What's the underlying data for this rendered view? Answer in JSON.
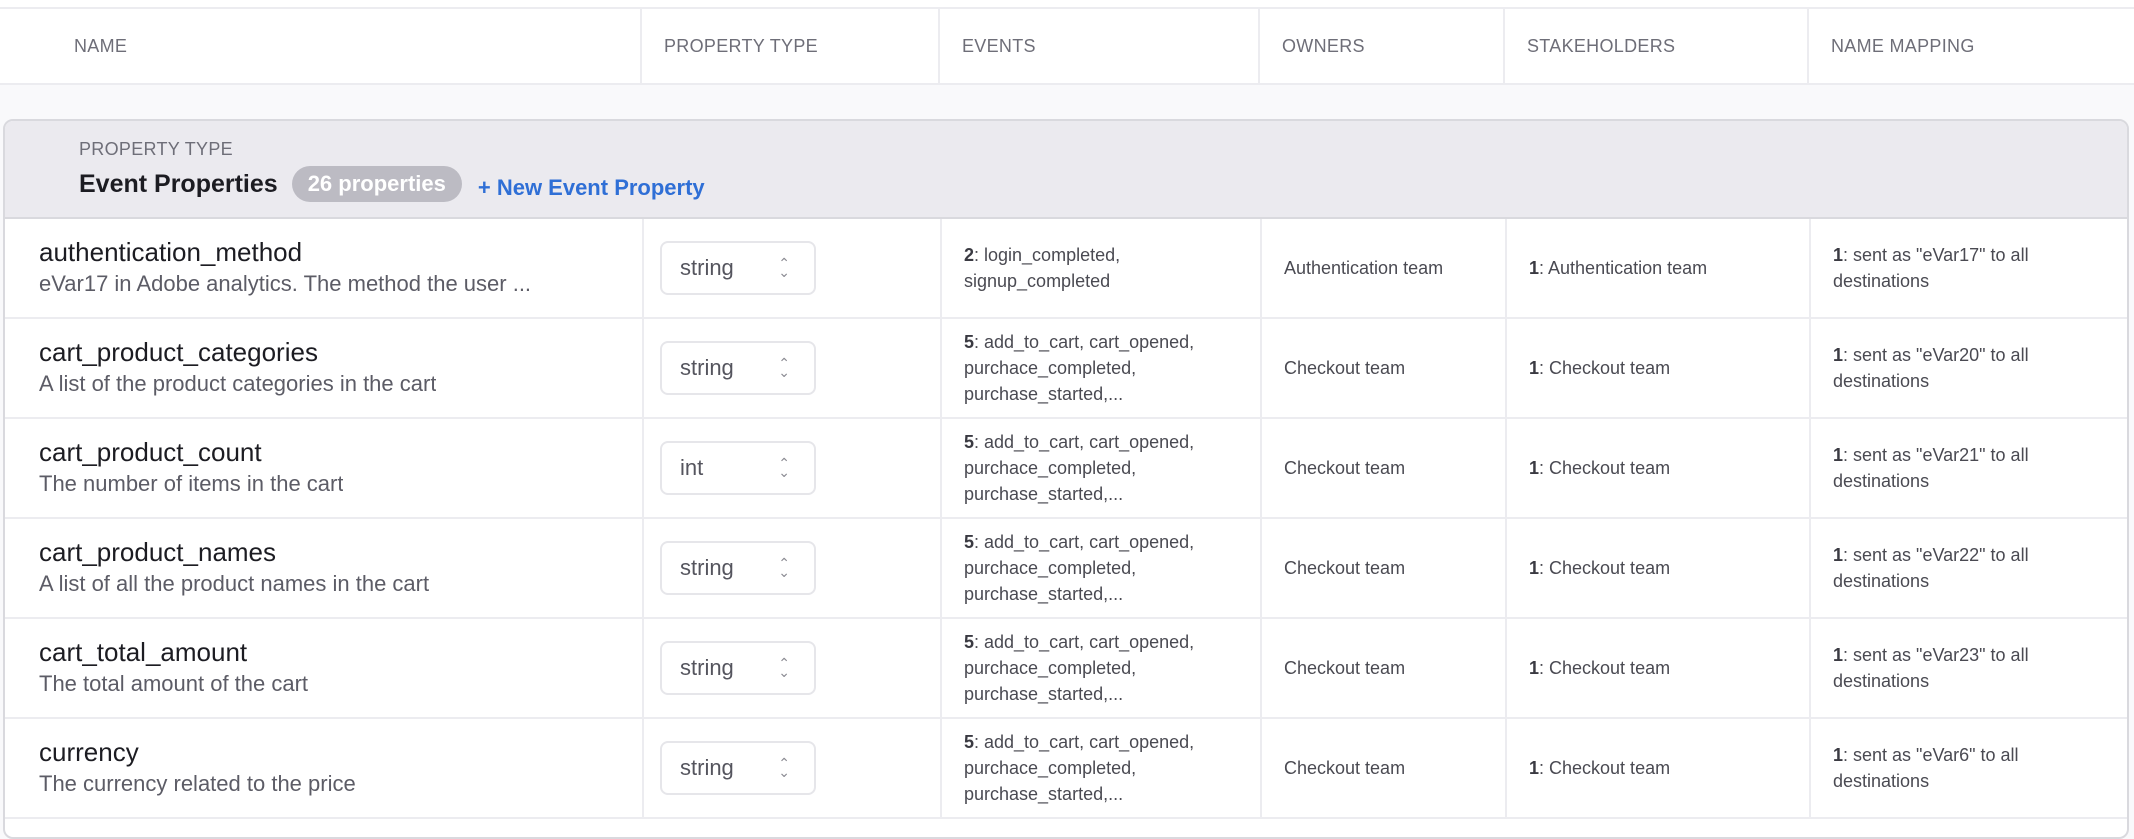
{
  "columns": [
    "NAME",
    "PROPERTY TYPE",
    "EVENTS",
    "OWNERS",
    "STAKEHOLDERS",
    "NAME MAPPING"
  ],
  "group": {
    "subtitle": "PROPERTY TYPE",
    "title": "Event Properties",
    "count_badge": "26 properties",
    "new_link": "+ New Event Property"
  },
  "accent_color": "#2f6fd6",
  "rows": [
    {
      "name": "authentication_method",
      "description": "eVar17 in Adobe analytics. The method the user ...",
      "type": "string",
      "events_count": "2",
      "events": ": login_completed, signup_completed",
      "owners": "Authentication team",
      "stake_count": "1",
      "stakeholders": ": Authentication team",
      "map_count": "1",
      "mapping": ": sent as \"eVar17\" to all destinations"
    },
    {
      "name": "cart_product_categories",
      "description": "A list of the product categories in the cart",
      "type": "string",
      "events_count": "5",
      "events": ": add_to_cart, cart_opened, purchace_completed, purchase_started,...",
      "owners": "Checkout team",
      "stake_count": "1",
      "stakeholders": ": Checkout team",
      "map_count": "1",
      "mapping": ": sent as \"eVar20\" to all destinations"
    },
    {
      "name": "cart_product_count",
      "description": "The number of items in the cart",
      "type": "int",
      "events_count": "5",
      "events": ": add_to_cart, cart_opened, purchace_completed, purchase_started,...",
      "owners": "Checkout team",
      "stake_count": "1",
      "stakeholders": ": Checkout team",
      "map_count": "1",
      "mapping": ": sent as \"eVar21\" to all destinations"
    },
    {
      "name": "cart_product_names",
      "description": "A list of all the product names in the cart",
      "type": "string",
      "events_count": "5",
      "events": ": add_to_cart, cart_opened, purchace_completed, purchase_started,...",
      "owners": "Checkout team",
      "stake_count": "1",
      "stakeholders": ": Checkout team",
      "map_count": "1",
      "mapping": ": sent as \"eVar22\" to all destinations"
    },
    {
      "name": "cart_total_amount",
      "description": "The total amount of the cart",
      "type": "string",
      "events_count": "5",
      "events": ": add_to_cart, cart_opened, purchace_completed, purchase_started,...",
      "owners": "Checkout team",
      "stake_count": "1",
      "stakeholders": ": Checkout team",
      "map_count": "1",
      "mapping": ": sent as \"eVar23\" to all destinations"
    },
    {
      "name": "currency",
      "description": "The currency related to the price",
      "type": "string",
      "events_count": "5",
      "events": ": add_to_cart, cart_opened, purchace_completed, purchase_started,...",
      "owners": "Checkout team",
      "stake_count": "1",
      "stakeholders": ": Checkout team",
      "map_count": "1",
      "mapping": ": sent as \"eVar6\" to all destinations"
    }
  ]
}
